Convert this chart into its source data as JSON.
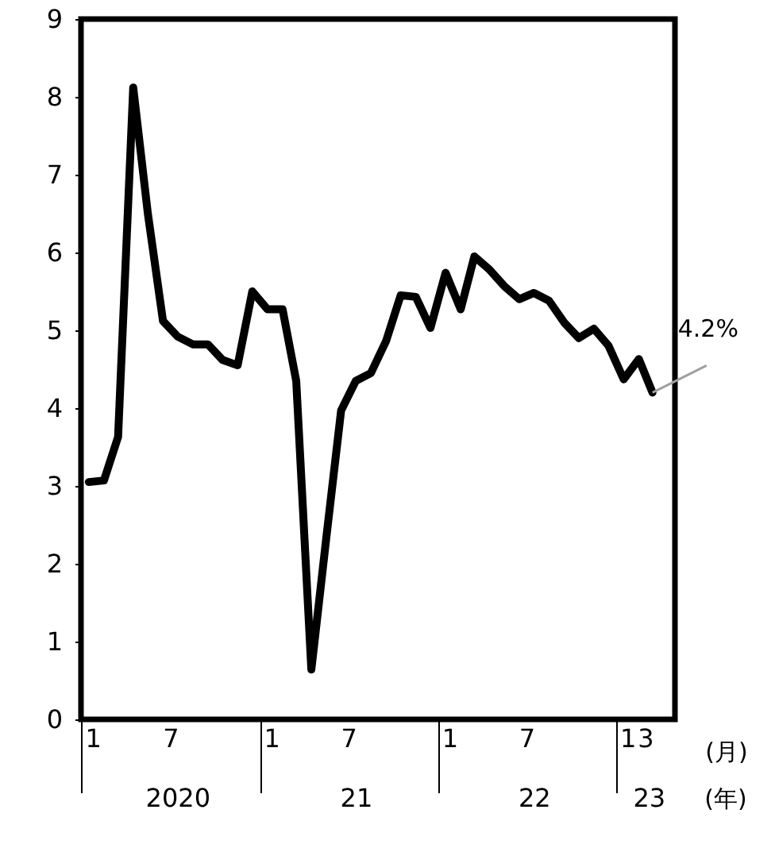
{
  "chart_data": {
    "type": "line",
    "x": [
      "2020-01",
      "2020-02",
      "2020-03",
      "2020-04",
      "2020-05",
      "2020-06",
      "2020-07",
      "2020-08",
      "2020-09",
      "2020-10",
      "2020-11",
      "2020-12",
      "2021-01",
      "2021-02",
      "2021-03",
      "2021-04",
      "2021-05",
      "2021-06",
      "2021-07",
      "2021-08",
      "2021-09",
      "2021-10",
      "2021-11",
      "2021-12",
      "2022-01",
      "2022-02",
      "2022-03",
      "2022-04",
      "2022-05",
      "2022-06",
      "2022-07",
      "2022-08",
      "2022-09",
      "2022-10",
      "2022-11",
      "2022-12",
      "2023-01",
      "2023-02",
      "2023-03"
    ],
    "series": [
      {
        "color": "#000000",
        "values": [
          3.05,
          3.07,
          3.63,
          8.12,
          6.5,
          5.12,
          4.92,
          4.82,
          4.82,
          4.62,
          4.55,
          5.5,
          5.27,
          5.27,
          4.35,
          0.64,
          2.3,
          3.97,
          4.35,
          4.45,
          4.86,
          5.45,
          5.43,
          5.03,
          5.74,
          5.27,
          5.95,
          5.78,
          5.57,
          5.4,
          5.48,
          5.38,
          5.1,
          4.9,
          5.02,
          4.8,
          4.37,
          4.63,
          4.2
        ]
      }
    ],
    "xlim": [
      "2019-12-16",
      "2023-04-16"
    ],
    "xticks": [
      {
        "value": "2020-01",
        "label": "1"
      },
      {
        "value": "2020-07",
        "label": "7"
      },
      {
        "value": "2021-01",
        "label": "1"
      },
      {
        "value": "2021-07",
        "label": "7"
      },
      {
        "value": "2022-01",
        "label": "1"
      },
      {
        "value": "2022-07",
        "label": "7"
      },
      {
        "value": "2023-01",
        "label": "1"
      },
      {
        "value": "2023-03",
        "label": "3"
      }
    ],
    "ylim": [
      0,
      9
    ],
    "yticks": [
      0,
      1,
      2,
      3,
      4,
      5,
      6,
      7,
      8,
      9
    ],
    "xlabel": "(月)",
    "annotations": [
      {
        "text": "4.2%",
        "x": "2023-03",
        "y": 4.2
      },
      "2020",
      "21",
      "22",
      "23",
      "(年)"
    ],
    "grid": false,
    "marker": "none",
    "line_style": "solid"
  }
}
